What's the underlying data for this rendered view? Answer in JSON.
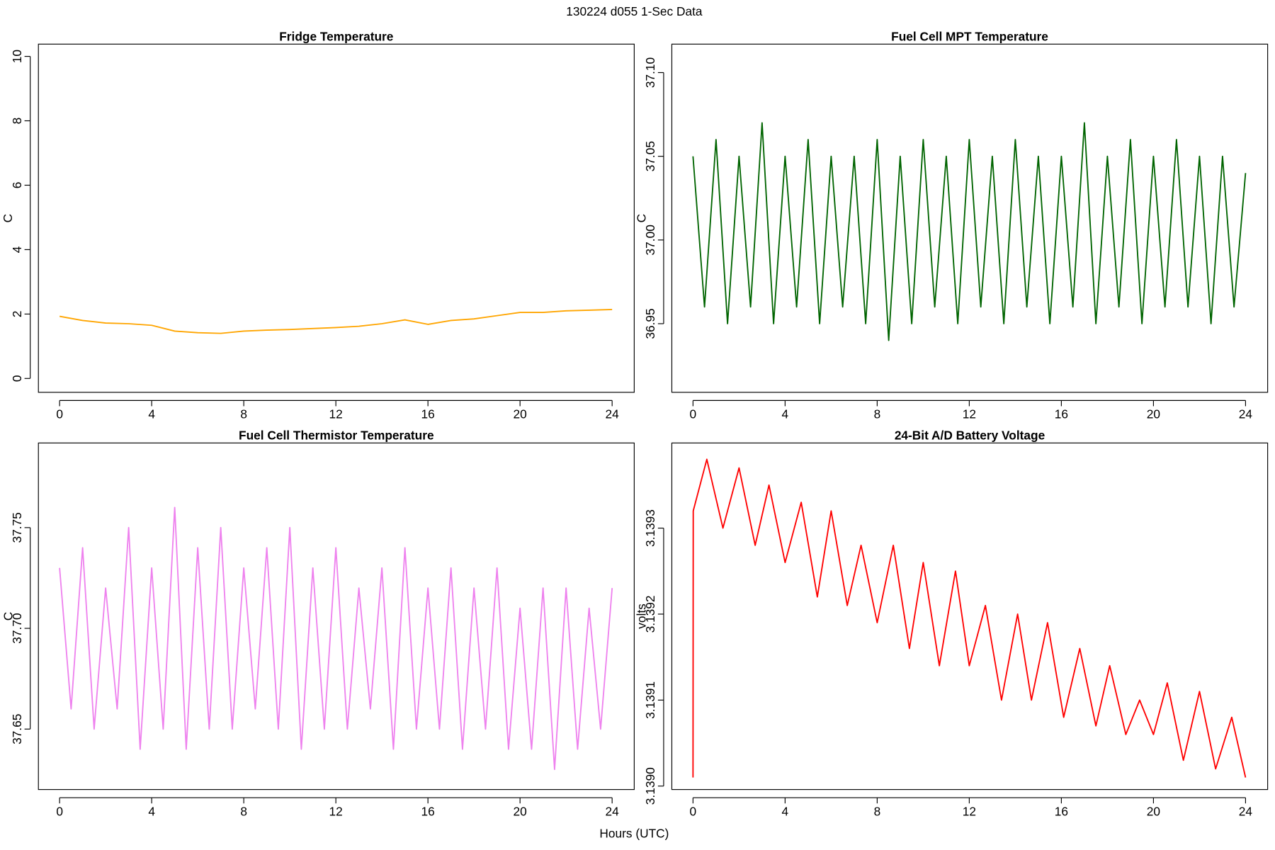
{
  "title": "130224   d055   1-Sec Data",
  "xlabel": "Hours (UTC)",
  "chart_data": [
    {
      "type": "line",
      "title": "Fridge Temperature",
      "ylabel": "C",
      "xlim": [
        -0.92,
        24.96
      ],
      "ylim": [
        -0.43,
        10.38
      ],
      "xticks": [
        0,
        4,
        8,
        12,
        16,
        20,
        24
      ],
      "yticks": [
        0,
        2,
        4,
        6,
        8,
        10
      ],
      "x": [
        0,
        1,
        2,
        3,
        4,
        5,
        6,
        7,
        8,
        9,
        10,
        11,
        12,
        13,
        14,
        15,
        16,
        17,
        18,
        19,
        20,
        21,
        22,
        23,
        24
      ],
      "series": [
        {
          "color": "#ffa500",
          "values": [
            1.93,
            1.8,
            1.72,
            1.7,
            1.65,
            1.47,
            1.42,
            1.4,
            1.47,
            1.5,
            1.52,
            1.55,
            1.58,
            1.62,
            1.7,
            1.82,
            1.68,
            1.8,
            1.85,
            1.95,
            2.05,
            2.05,
            2.1,
            2.12,
            2.14
          ]
        }
      ]
    },
    {
      "type": "line",
      "title": "Fuel Cell MPT Temperature",
      "ylabel": "C",
      "xlim": [
        -0.92,
        24.96
      ],
      "ylim": [
        36.909,
        37.117
      ],
      "xticks": [
        0,
        4,
        8,
        12,
        16,
        20,
        24
      ],
      "yticks": [
        36.95,
        {
          "value": 37,
          "label": "37.00"
        },
        37.05,
        {
          "value": 37.1,
          "label": "37.10"
        }
      ],
      "x": [
        0,
        0.5,
        1,
        1.5,
        2,
        2.5,
        3,
        3.5,
        4,
        4.5,
        5,
        5.5,
        6,
        6.5,
        7,
        7.5,
        8,
        8.5,
        9,
        9.5,
        10,
        10.5,
        11,
        11.5,
        12,
        12.5,
        13,
        13.5,
        14,
        14.5,
        15,
        15.5,
        16,
        16.5,
        17,
        17.5,
        18,
        18.5,
        19,
        19.5,
        20,
        20.5,
        21,
        21.5,
        22,
        22.5,
        23,
        23.5,
        24
      ],
      "series": [
        {
          "color": "#006400",
          "values": [
            37.05,
            36.96,
            37.06,
            36.95,
            37.05,
            36.96,
            37.07,
            36.95,
            37.05,
            36.96,
            37.06,
            36.95,
            37.05,
            36.96,
            37.05,
            36.95,
            37.06,
            36.94,
            37.05,
            36.95,
            37.06,
            36.96,
            37.05,
            36.95,
            37.06,
            36.96,
            37.05,
            36.95,
            37.06,
            36.96,
            37.05,
            36.95,
            37.05,
            36.96,
            37.07,
            36.95,
            37.05,
            36.96,
            37.06,
            36.95,
            37.05,
            36.96,
            37.06,
            36.96,
            37.05,
            36.95,
            37.05,
            36.96,
            37.04
          ]
        }
      ]
    },
    {
      "type": "line",
      "title": "Fuel Cell Thermistor Temperature",
      "ylabel": "C",
      "xlim": [
        -0.92,
        24.96
      ],
      "ylim": [
        37.62,
        37.792
      ],
      "xticks": [
        0,
        4,
        8,
        12,
        16,
        20,
        24
      ],
      "yticks": [
        37.65,
        {
          "value": 37.7,
          "label": "37.70"
        },
        37.75
      ],
      "x": [
        0,
        0.5,
        1,
        1.5,
        2,
        2.5,
        3,
        3.5,
        4,
        4.5,
        5,
        5.5,
        6,
        6.5,
        7,
        7.5,
        8,
        8.5,
        9,
        9.5,
        10,
        10.5,
        11,
        11.5,
        12,
        12.5,
        13,
        13.5,
        14,
        14.5,
        15,
        15.5,
        16,
        16.5,
        17,
        17.5,
        18,
        18.5,
        19,
        19.5,
        20,
        20.5,
        21,
        21.5,
        22,
        22.5,
        23,
        23.5,
        24
      ],
      "series": [
        {
          "color": "#ee82ee",
          "values": [
            37.73,
            37.66,
            37.74,
            37.65,
            37.72,
            37.66,
            37.75,
            37.64,
            37.73,
            37.65,
            37.76,
            37.64,
            37.74,
            37.65,
            37.75,
            37.65,
            37.73,
            37.66,
            37.74,
            37.65,
            37.75,
            37.64,
            37.73,
            37.65,
            37.74,
            37.65,
            37.72,
            37.66,
            37.73,
            37.64,
            37.74,
            37.65,
            37.72,
            37.65,
            37.73,
            37.64,
            37.72,
            37.65,
            37.73,
            37.64,
            37.71,
            37.64,
            37.72,
            37.63,
            37.72,
            37.64,
            37.71,
            37.65,
            37.72
          ]
        }
      ]
    },
    {
      "type": "line",
      "title": "24-Bit A/D Battery Voltage",
      "ylabel": "volts",
      "xlim": [
        -0.92,
        24.96
      ],
      "ylim": [
        3.138996,
        3.139399
      ],
      "xticks": [
        0,
        4,
        8,
        12,
        16,
        20,
        24
      ],
      "yticks": [
        {
          "value": 3.139,
          "label": "3.1390"
        },
        3.1391,
        3.1392,
        3.1393
      ],
      "x": [
        0,
        0.01,
        0.6,
        1.3,
        2.0,
        2.7,
        3.3,
        4.0,
        4.7,
        5.4,
        6.0,
        6.7,
        7.3,
        8.0,
        8.7,
        9.4,
        10.0,
        10.7,
        11.4,
        12.0,
        12.7,
        13.4,
        14.1,
        14.7,
        15.4,
        16.1,
        16.8,
        17.5,
        18.1,
        18.8,
        19.4,
        20.0,
        20.6,
        21.3,
        22.0,
        22.7,
        23.4,
        24.0
      ],
      "series": [
        {
          "color": "#ff0000",
          "values": [
            3.13901,
            3.13932,
            3.13938,
            3.1393,
            3.13937,
            3.13928,
            3.13935,
            3.13926,
            3.13933,
            3.13922,
            3.13932,
            3.13921,
            3.13928,
            3.13919,
            3.13928,
            3.13916,
            3.13926,
            3.13914,
            3.13925,
            3.13914,
            3.13921,
            3.1391,
            3.1392,
            3.1391,
            3.13919,
            3.13908,
            3.13916,
            3.13907,
            3.13914,
            3.13906,
            3.1391,
            3.13906,
            3.13912,
            3.13903,
            3.13911,
            3.13902,
            3.13908,
            3.13901
          ]
        }
      ]
    }
  ]
}
